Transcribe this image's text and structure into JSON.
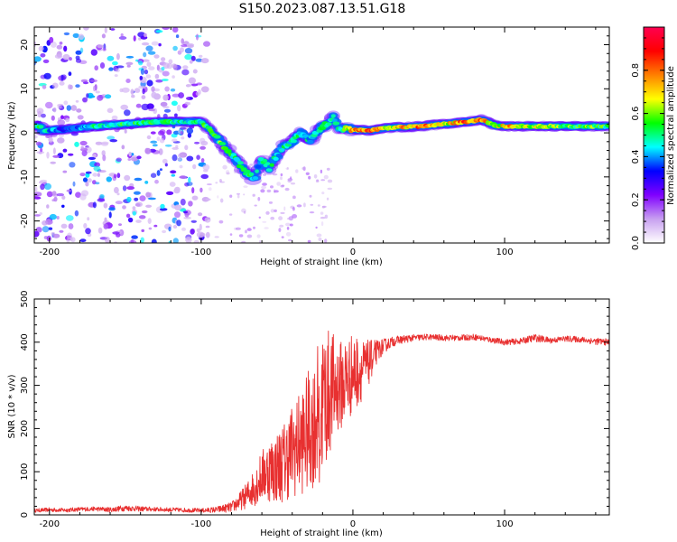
{
  "figure": {
    "title": "S150.2023.087.13.51.G18"
  },
  "colors": {
    "snr_line": "#e83030",
    "axis": "#000000",
    "colormap": [
      "#ffffff",
      "#c8a0f0",
      "#8000ff",
      "#0000ff",
      "#00ffff",
      "#00ff00",
      "#ffff00",
      "#ff8000",
      "#ff0000",
      "#ff0050"
    ]
  },
  "chart_data": [
    {
      "type": "heatmap",
      "title": "",
      "xlabel": "Height of straight line (km)",
      "ylabel": "Frequency (Hz)",
      "xlim": [
        -210,
        169
      ],
      "ylim": [
        -25,
        24
      ],
      "x_ticks": [
        -200,
        -100,
        0,
        100
      ],
      "y_ticks": [
        -20,
        -10,
        0,
        10,
        20
      ],
      "colorbar": {
        "label": "Normalized spectral amplitude",
        "range": [
          0.0,
          1.0
        ],
        "ticks": [
          "0.0",
          "0.2",
          "0.4",
          "0.6",
          "0.8"
        ]
      },
      "ridge": [
        {
          "x": -205,
          "y": 0.5,
          "a": 0.5
        },
        {
          "x": -190,
          "y": 0.8,
          "a": 0.35
        },
        {
          "x": -170,
          "y": 1.5,
          "a": 0.5
        },
        {
          "x": -150,
          "y": 2.0,
          "a": 0.55
        },
        {
          "x": -130,
          "y": 2.5,
          "a": 0.55
        },
        {
          "x": -110,
          "y": 2.5,
          "a": 0.5
        },
        {
          "x": -100,
          "y": 2.5,
          "a": 0.55
        },
        {
          "x": -95,
          "y": 1.0,
          "a": 0.6
        },
        {
          "x": -90,
          "y": -1.0,
          "a": 0.6
        },
        {
          "x": -85,
          "y": -3.0,
          "a": 0.6
        },
        {
          "x": -80,
          "y": -5.0,
          "a": 0.55
        },
        {
          "x": -75,
          "y": -7.0,
          "a": 0.55
        },
        {
          "x": -70,
          "y": -9.0,
          "a": 0.6
        },
        {
          "x": -65,
          "y": -10.5,
          "a": 0.45
        },
        {
          "x": -60,
          "y": -6.0,
          "a": 0.5
        },
        {
          "x": -55,
          "y": -8.0,
          "a": 0.5
        },
        {
          "x": -50,
          "y": -5.0,
          "a": 0.5
        },
        {
          "x": -45,
          "y": -3.0,
          "a": 0.5
        },
        {
          "x": -40,
          "y": -2.0,
          "a": 0.5
        },
        {
          "x": -35,
          "y": 0.0,
          "a": 0.55
        },
        {
          "x": -28,
          "y": -1.5,
          "a": 0.45
        },
        {
          "x": -22,
          "y": 1.0,
          "a": 0.5
        },
        {
          "x": -16,
          "y": 2.0,
          "a": 0.55
        },
        {
          "x": -13,
          "y": 4.0,
          "a": 0.5
        },
        {
          "x": -10,
          "y": 1.0,
          "a": 0.5
        },
        {
          "x": 0,
          "y": 0.8,
          "a": 0.8
        },
        {
          "x": 10,
          "y": 0.5,
          "a": 0.9
        },
        {
          "x": 25,
          "y": 1.2,
          "a": 0.7
        },
        {
          "x": 45,
          "y": 1.5,
          "a": 0.85
        },
        {
          "x": 60,
          "y": 2.0,
          "a": 0.7
        },
        {
          "x": 75,
          "y": 2.5,
          "a": 0.85
        },
        {
          "x": 85,
          "y": 3.0,
          "a": 0.8
        },
        {
          "x": 95,
          "y": 1.5,
          "a": 0.7
        },
        {
          "x": 105,
          "y": 1.5,
          "a": 0.8
        },
        {
          "x": 120,
          "y": 1.5,
          "a": 0.65
        },
        {
          "x": 140,
          "y": 1.5,
          "a": 0.6
        },
        {
          "x": 160,
          "y": 1.5,
          "a": 0.6
        },
        {
          "x": 169,
          "y": 1.5,
          "a": 0.55
        }
      ]
    },
    {
      "type": "line",
      "title": "",
      "xlabel": "Height of straight line (km)",
      "ylabel": "SNR (10 * v/v)",
      "xlim": [
        -210,
        169
      ],
      "ylim": [
        0,
        500
      ],
      "x_ticks": [
        -200,
        -100,
        0,
        100
      ],
      "y_ticks": [
        0,
        100,
        200,
        300,
        400,
        500
      ],
      "series": [
        {
          "x": [
            -210,
            -200,
            -190,
            -180,
            -170,
            -160,
            -150,
            -140,
            -130,
            -120,
            -110,
            -100,
            -90,
            -80,
            -75,
            -70,
            -65,
            -60,
            -55,
            -50,
            -45,
            -40,
            -35,
            -30,
            -25,
            -22,
            -20,
            -18,
            -15,
            -12,
            -10,
            -8,
            -5,
            -2,
            0,
            2,
            5,
            8,
            10,
            12,
            15,
            18,
            20,
            25,
            30,
            40,
            50,
            60,
            70,
            80,
            90,
            100,
            110,
            120,
            130,
            140,
            150,
            160,
            169
          ],
          "values": [
            10,
            12,
            11,
            13,
            14,
            12,
            16,
            14,
            13,
            12,
            11,
            10,
            12,
            18,
            30,
            45,
            65,
            90,
            105,
            110,
            125,
            150,
            165,
            190,
            215,
            245,
            260,
            270,
            285,
            290,
            300,
            300,
            310,
            320,
            330,
            330,
            335,
            340,
            350,
            360,
            375,
            385,
            390,
            400,
            405,
            410,
            412,
            410,
            410,
            412,
            406,
            400,
            402,
            410,
            404,
            408,
            406,
            402,
            400
          ],
          "noise": [
            4,
            5,
            5,
            5,
            5,
            6,
            7,
            6,
            5,
            5,
            5,
            5,
            7,
            12,
            20,
            30,
            45,
            60,
            75,
            85,
            95,
            110,
            120,
            140,
            150,
            170,
            180,
            170,
            140,
            130,
            110,
            105,
            110,
            100,
            90,
            90,
            75,
            65,
            55,
            45,
            30,
            22,
            18,
            12,
            10,
            8,
            7,
            7,
            7,
            7,
            7,
            7,
            7,
            9,
            7,
            7,
            7,
            8,
            8
          ]
        }
      ]
    }
  ]
}
